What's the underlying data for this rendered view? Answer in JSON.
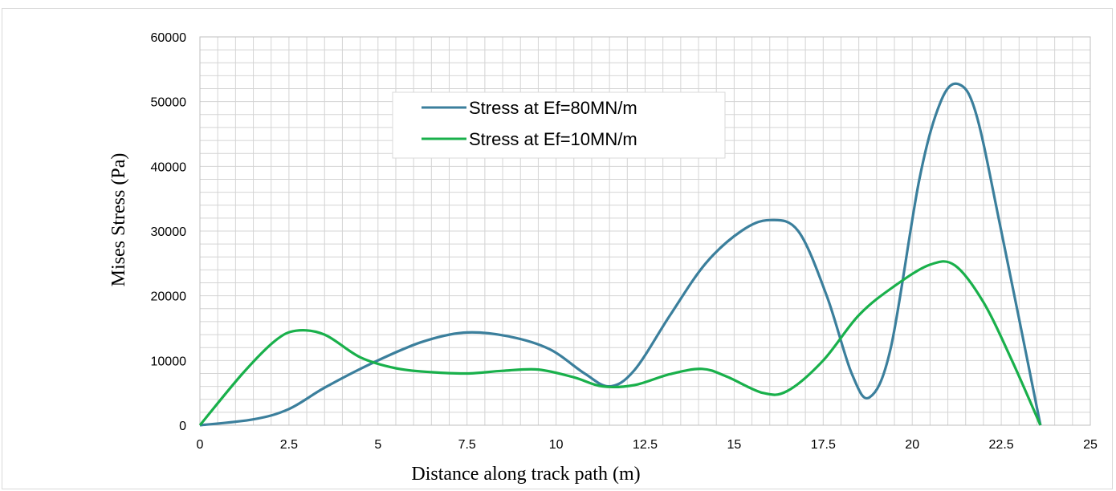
{
  "chart_data": {
    "type": "line",
    "title": "",
    "xlabel": "Distance along track path (m)",
    "ylabel": "Mises Stress (Pa)",
    "xlim": [
      0,
      25
    ],
    "ylim": [
      0,
      60000
    ],
    "x_ticks": [
      "0",
      "2.5",
      "5",
      "7.5",
      "10",
      "12.5",
      "15",
      "17.5",
      "20",
      "22.5",
      "25"
    ],
    "y_ticks": [
      "0",
      "10000",
      "20000",
      "30000",
      "40000",
      "50000",
      "60000"
    ],
    "grid": true,
    "legend_position": "top-center",
    "series": [
      {
        "name": "Stress at Ef=80MN/m",
        "color": "#3b7f9c",
        "points": [
          [
            0,
            0
          ],
          [
            1.5,
            900
          ],
          [
            2.5,
            2500
          ],
          [
            3.5,
            5800
          ],
          [
            4.8,
            9500
          ],
          [
            6.2,
            12800
          ],
          [
            7.4,
            14300
          ],
          [
            8.6,
            13800
          ],
          [
            9.8,
            11800
          ],
          [
            10.8,
            8000
          ],
          [
            11.5,
            6000
          ],
          [
            12.2,
            8500
          ],
          [
            13.2,
            17000
          ],
          [
            14.2,
            25000
          ],
          [
            15.2,
            30000
          ],
          [
            16,
            31700
          ],
          [
            16.8,
            30000
          ],
          [
            17.6,
            20000
          ],
          [
            18.3,
            8000
          ],
          [
            18.8,
            4300
          ],
          [
            19.4,
            12000
          ],
          [
            20.2,
            38000
          ],
          [
            20.8,
            50000
          ],
          [
            21.3,
            52700
          ],
          [
            21.8,
            48000
          ],
          [
            22.5,
            30000
          ],
          [
            23.6,
            0
          ]
        ]
      },
      {
        "name": "Stress at Ef=10MN/m",
        "color": "#19b04b",
        "points": [
          [
            0,
            0
          ],
          [
            1.2,
            8000
          ],
          [
            2.1,
            13000
          ],
          [
            2.7,
            14600
          ],
          [
            3.5,
            14000
          ],
          [
            4.5,
            10500
          ],
          [
            5.5,
            8800
          ],
          [
            6.5,
            8200
          ],
          [
            7.5,
            8000
          ],
          [
            8.5,
            8400
          ],
          [
            9.5,
            8600
          ],
          [
            10.5,
            7400
          ],
          [
            11.3,
            6000
          ],
          [
            12.2,
            6200
          ],
          [
            13.2,
            7900
          ],
          [
            14.1,
            8700
          ],
          [
            14.8,
            7500
          ],
          [
            15.8,
            5000
          ],
          [
            16.5,
            5300
          ],
          [
            17.5,
            10000
          ],
          [
            18.5,
            17000
          ],
          [
            19.5,
            21500
          ],
          [
            20.5,
            24800
          ],
          [
            21.2,
            24700
          ],
          [
            22,
            19000
          ],
          [
            22.8,
            10000
          ],
          [
            23.6,
            0
          ]
        ]
      }
    ]
  }
}
